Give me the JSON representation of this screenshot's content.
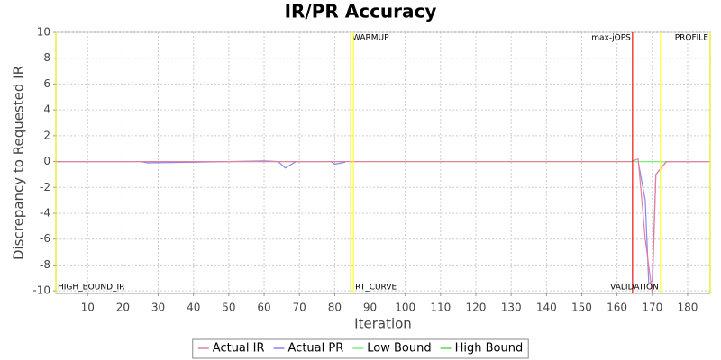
{
  "chart_data": {
    "type": "line",
    "title": "IR/PR Accuracy",
    "x_label": "Iteration",
    "y_label": "Discrepancy to Requested IR",
    "xlim": [
      1,
      186.4
    ],
    "ylim": [
      -10.2,
      10
    ],
    "xticks": [
      10,
      20,
      30,
      40,
      50,
      60,
      70,
      80,
      90,
      100,
      110,
      120,
      130,
      140,
      150,
      160,
      170,
      180
    ],
    "yticks": [
      -10,
      -8,
      -6,
      -4,
      -2,
      0,
      2,
      4,
      6,
      8,
      10
    ],
    "grid": true,
    "legend_position": "bottom",
    "series": [
      {
        "name": "Actual IR",
        "color": "#e87f9a",
        "x": [
          1,
          20,
          40,
          60,
          64,
          70,
          83,
          85,
          120,
          164,
          166,
          168,
          170,
          171,
          174,
          186
        ],
        "values": [
          0,
          0,
          0,
          0,
          0,
          0,
          0,
          0,
          0,
          0,
          0.2,
          -6,
          -10.2,
          -1,
          0,
          0
        ]
      },
      {
        "name": "Actual PR",
        "color": "#8a86f0",
        "x": [
          1,
          25,
          27,
          40,
          60,
          64,
          66,
          69,
          79,
          80,
          83,
          84,
          166,
          168,
          169,
          170,
          171,
          174,
          186
        ],
        "values": [
          0,
          0,
          -0.1,
          -0.05,
          0.05,
          0,
          -0.5,
          0,
          0,
          -0.2,
          -0.05,
          null,
          0,
          -3,
          -9.5,
          -9.2,
          -1,
          0,
          0
        ]
      },
      {
        "name": "Low Bound",
        "color": "#7df07d",
        "x": [
          1,
          186.4
        ],
        "values": [
          0,
          0
        ]
      },
      {
        "name": "High Bound",
        "color": "#58d858",
        "x": [
          1,
          186.4
        ],
        "values": [
          0,
          0
        ]
      }
    ],
    "markers": [
      {
        "x": 1,
        "label": "HIGH_BOUND_IR",
        "color": "#e8e800",
        "anchor": "bottom-right"
      },
      {
        "x": 84.5,
        "label": "WARMUP",
        "color": "#ffff33",
        "anchor": "top-right"
      },
      {
        "x": 85.3,
        "label": "RT_CURVE",
        "color": "#ffff33",
        "anchor": "bottom-right"
      },
      {
        "x": 164.4,
        "label": "max-jOPS",
        "color": "#ee1111",
        "anchor": "top-left"
      },
      {
        "x": 172.3,
        "label": "VALIDATION",
        "color": "#ffff33",
        "anchor": "bottom-left"
      },
      {
        "x": 186.4,
        "label": "PROFILE",
        "color": "#e8e800",
        "anchor": "top-left"
      }
    ]
  }
}
